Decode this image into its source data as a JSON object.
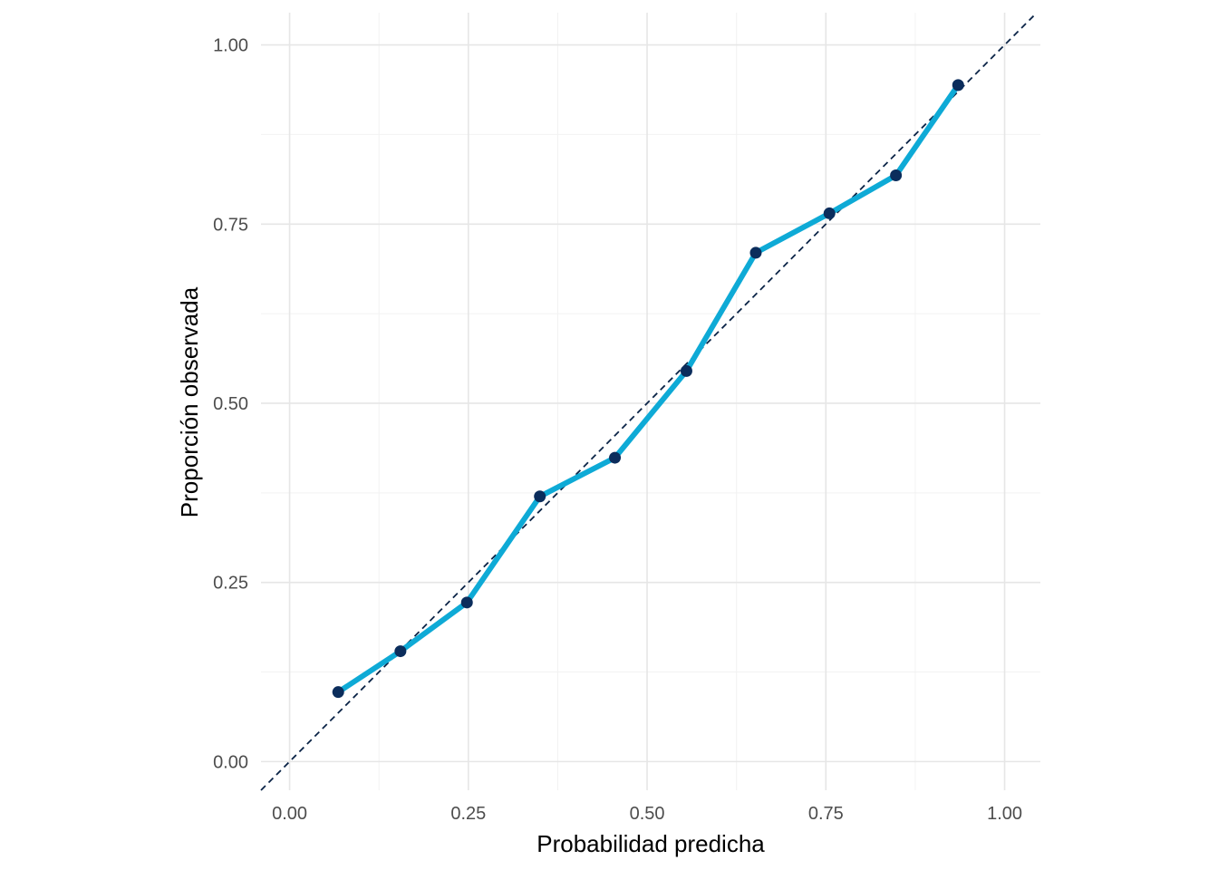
{
  "chart_data": {
    "type": "line",
    "title": "",
    "xlabel": "Probabilidad predicha",
    "ylabel": "Proporción observada",
    "xlim": [
      -0.04,
      1.05
    ],
    "ylim": [
      -0.04,
      1.045
    ],
    "x_ticks": [
      0.0,
      0.25,
      0.5,
      0.75,
      1.0
    ],
    "x_tick_labels": [
      "0.00",
      "0.25",
      "0.50",
      "0.75",
      "1.00"
    ],
    "y_ticks": [
      0.0,
      0.25,
      0.5,
      0.75,
      1.0
    ],
    "y_tick_labels": [
      "0.00",
      "0.25",
      "0.50",
      "0.75",
      "1.00"
    ],
    "grid": true,
    "legend": "none",
    "reference_line": {
      "style": "dashed",
      "slope": 1,
      "intercept": 0,
      "color": "#0b2447"
    },
    "series": [
      {
        "x": [
          0.068,
          0.155,
          0.248,
          0.35,
          0.455,
          0.555,
          0.652,
          0.755,
          0.848,
          0.935
        ],
        "y": [
          0.097,
          0.154,
          0.222,
          0.37,
          0.424,
          0.545,
          0.71,
          0.765,
          0.818,
          0.944
        ],
        "line_color": "#0eaad6",
        "point_color": "#0b2d5c"
      }
    ]
  }
}
